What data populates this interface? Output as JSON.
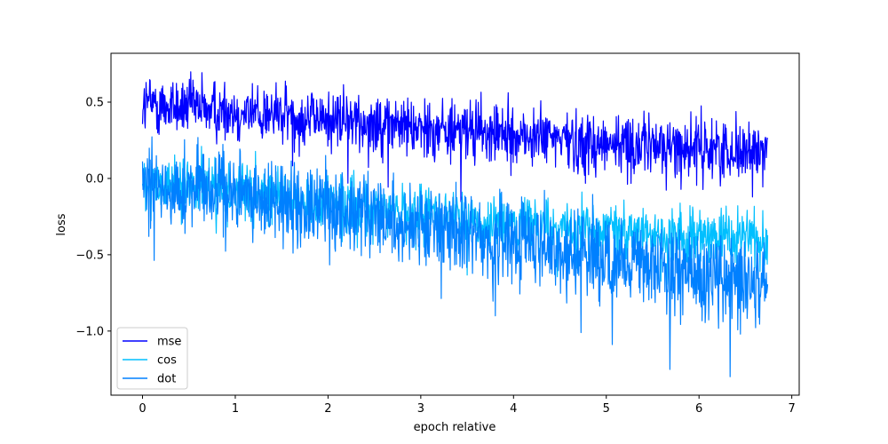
{
  "chart_data": {
    "type": "line",
    "title": "",
    "xlabel": "epoch relative",
    "ylabel": "loss",
    "xlim": [
      -0.34,
      7.08
    ],
    "ylim": [
      -1.42,
      0.82
    ],
    "xticks": [
      0,
      1,
      2,
      3,
      4,
      5,
      6,
      7
    ],
    "xtick_labels": [
      "0",
      "1",
      "2",
      "3",
      "4",
      "5",
      "6",
      "7"
    ],
    "yticks": [
      0.5,
      0.0,
      -0.5,
      -1.0
    ],
    "ytick_labels": [
      "0.5",
      "0.0",
      "−0.5",
      "−1.0"
    ],
    "grid": false,
    "legend": "lower-left",
    "x_range": [
      0.0,
      6.74
    ],
    "series": [
      {
        "name": "mse",
        "color": "#0000ff",
        "trend": [
          [
            0.0,
            0.49
          ],
          [
            1.0,
            0.44
          ],
          [
            2.0,
            0.39
          ],
          [
            3.0,
            0.34
          ],
          [
            4.0,
            0.28
          ],
          [
            5.0,
            0.23
          ],
          [
            6.0,
            0.2
          ],
          [
            6.74,
            0.17
          ]
        ],
        "noise": 0.1
      },
      {
        "name": "cos",
        "color": "#00bfff",
        "trend": [
          [
            0.0,
            -0.02
          ],
          [
            1.0,
            -0.09
          ],
          [
            2.0,
            -0.16
          ],
          [
            3.0,
            -0.24
          ],
          [
            4.0,
            -0.3
          ],
          [
            5.0,
            -0.35
          ],
          [
            6.0,
            -0.38
          ],
          [
            6.74,
            -0.4
          ]
        ],
        "noise": 0.09
      },
      {
        "name": "dot",
        "color": "#0080ff",
        "trend": [
          [
            0.0,
            -0.03
          ],
          [
            1.0,
            -0.11
          ],
          [
            2.0,
            -0.2
          ],
          [
            3.0,
            -0.3
          ],
          [
            4.0,
            -0.42
          ],
          [
            5.0,
            -0.53
          ],
          [
            6.0,
            -0.62
          ],
          [
            6.74,
            -0.7
          ]
        ],
        "noise": 0.14
      }
    ]
  }
}
